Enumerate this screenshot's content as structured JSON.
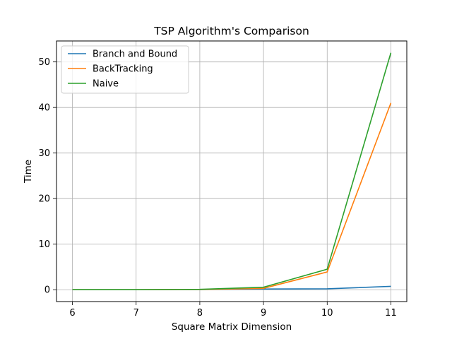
{
  "chart_data": {
    "type": "line",
    "title": "TSP Algorithm's Comparison",
    "xlabel": "Square Matrix Dimension",
    "ylabel": "Time",
    "x": [
      6,
      7,
      8,
      9,
      10,
      11
    ],
    "xlim": [
      5.75,
      11.25
    ],
    "ylim": [
      -2.6,
      54.6
    ],
    "xticks": [
      "6",
      "7",
      "8",
      "9",
      "10",
      "11"
    ],
    "yticks": [
      "0",
      "10",
      "20",
      "30",
      "40",
      "50"
    ],
    "grid": true,
    "legend_position": "top-left",
    "series": [
      {
        "name": "Branch and Bound",
        "color": "#1f77b4",
        "values": [
          0.0,
          0.0,
          0.05,
          0.15,
          0.2,
          0.75
        ]
      },
      {
        "name": "BackTracking",
        "color": "#ff7f0e",
        "values": [
          0.0,
          0.0,
          0.05,
          0.3,
          3.9,
          41.0
        ]
      },
      {
        "name": "Naive",
        "color": "#2ca02c",
        "values": [
          0.0,
          0.0,
          0.08,
          0.55,
          4.5,
          52.0
        ]
      }
    ]
  }
}
